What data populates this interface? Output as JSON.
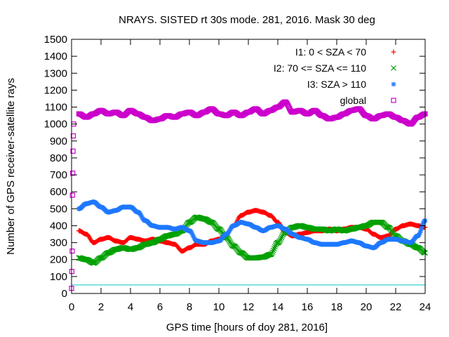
{
  "chart_data": {
    "type": "scatter",
    "title": "NRAYS. SISTED rt 30s mode. 281, 2016. Mask 30 deg",
    "xlabel": "GPS time [hours of doy 281, 2016]",
    "ylabel": "Number of GPS receiver-satellite rays",
    "xlim": [
      0,
      24
    ],
    "ylim": [
      0,
      1500
    ],
    "x_ticks": [
      "0",
      "2",
      "4",
      "6",
      "8",
      "10",
      "12",
      "14",
      "16",
      "18",
      "20",
      "22",
      "24"
    ],
    "y_ticks": [
      "0",
      "100",
      "200",
      "300",
      "400",
      "500",
      "600",
      "700",
      "800",
      "900",
      "1000",
      "1100",
      "1200",
      "1300",
      "1400",
      "1500"
    ],
    "legend_position": "top-right",
    "reference_line": {
      "y": 50,
      "color": "#00c8c8"
    },
    "series": [
      {
        "name": "I1: 0 < SZA < 70",
        "color": "#ff0000",
        "marker": "+",
        "x": [
          0.5,
          1,
          1.5,
          2,
          2.5,
          3,
          3.5,
          4,
          4.5,
          5,
          5.5,
          6,
          6.5,
          7,
          7.5,
          8,
          8.5,
          9,
          9.5,
          10,
          10.5,
          11,
          11.5,
          12,
          12.5,
          13,
          13.5,
          14,
          14.5,
          15,
          15.5,
          16,
          16.5,
          17,
          17.5,
          18,
          18.5,
          19,
          19.5,
          20,
          20.5,
          21,
          21.5,
          22,
          22.5,
          23,
          23.5,
          24
        ],
        "y": [
          370,
          350,
          300,
          320,
          330,
          310,
          300,
          330,
          320,
          310,
          320,
          310,
          300,
          290,
          250,
          270,
          290,
          290,
          310,
          320,
          350,
          400,
          460,
          480,
          490,
          480,
          460,
          420,
          360,
          340,
          350,
          360,
          370,
          370,
          380,
          370,
          380,
          390,
          390,
          380,
          350,
          330,
          340,
          380,
          400,
          410,
          400,
          390
        ]
      },
      {
        "name": "I2: 70 <= SZA <= 110",
        "color": "#00a000",
        "marker": "x",
        "x": [
          0.5,
          1,
          1.5,
          2,
          2.5,
          3,
          3.5,
          4,
          4.5,
          5,
          5.5,
          6,
          6.5,
          7,
          7.5,
          8,
          8.5,
          9,
          9.5,
          10,
          10.5,
          11,
          11.5,
          12,
          12.5,
          13,
          13.5,
          14,
          14.5,
          15,
          15.5,
          16,
          16.5,
          17,
          17.5,
          18,
          18.5,
          19,
          19.5,
          20,
          20.5,
          21,
          21.5,
          22,
          22.5,
          23,
          23.5,
          24
        ],
        "y": [
          210,
          200,
          180,
          210,
          240,
          260,
          270,
          260,
          270,
          290,
          300,
          320,
          340,
          350,
          370,
          420,
          450,
          440,
          420,
          380,
          330,
          280,
          240,
          210,
          210,
          215,
          230,
          300,
          360,
          390,
          400,
          390,
          380,
          380,
          370,
          380,
          370,
          380,
          390,
          400,
          420,
          420,
          390,
          340,
          310,
          290,
          270,
          240
        ]
      },
      {
        "name": "I3: SZA > 110",
        "color": "#1e78ff",
        "marker": "*",
        "x": [
          0.5,
          1,
          1.5,
          2,
          2.5,
          3,
          3.5,
          4,
          4.5,
          5,
          5.5,
          6,
          6.5,
          7,
          7.5,
          8,
          8.5,
          9,
          9.5,
          10,
          10.5,
          11,
          11.5,
          12,
          12.5,
          13,
          13.5,
          14,
          14.5,
          15,
          15.5,
          16,
          16.5,
          17,
          17.5,
          18,
          18.5,
          19,
          19.5,
          20,
          20.5,
          21,
          21.5,
          22,
          22.5,
          23,
          23.5,
          24
        ],
        "y": [
          500,
          530,
          540,
          510,
          480,
          490,
          510,
          510,
          480,
          430,
          400,
          390,
          390,
          380,
          390,
          370,
          310,
          300,
          300,
          310,
          350,
          400,
          420,
          410,
          390,
          370,
          390,
          400,
          380,
          350,
          330,
          320,
          300,
          290,
          290,
          290,
          300,
          310,
          300,
          280,
          270,
          300,
          320,
          320,
          310,
          300,
          340,
          430
        ]
      },
      {
        "name": "global",
        "color": "#cc00cc",
        "marker": "square",
        "x": [
          0.5,
          1,
          1.5,
          2,
          2.5,
          3,
          3.5,
          4,
          4.5,
          5,
          5.5,
          6,
          6.5,
          7,
          7.5,
          8,
          8.5,
          9,
          9.5,
          10,
          10.5,
          11,
          11.5,
          12,
          12.5,
          13,
          13.5,
          14,
          14.5,
          15,
          15.5,
          16,
          16.5,
          17,
          17.5,
          18,
          18.5,
          19,
          19.5,
          20,
          20.5,
          21,
          21.5,
          22,
          22.5,
          23,
          23.5,
          24
        ],
        "y": [
          1060,
          1040,
          1060,
          1080,
          1060,
          1070,
          1050,
          1080,
          1060,
          1040,
          1020,
          1030,
          1050,
          1040,
          1060,
          1070,
          1050,
          1070,
          1090,
          1060,
          1050,
          1070,
          1050,
          1070,
          1090,
          1060,
          1080,
          1100,
          1130,
          1070,
          1080,
          1060,
          1080,
          1050,
          1030,
          1040,
          1060,
          1080,
          1090,
          1050,
          1030,
          1050,
          1060,
          1040,
          1020,
          1000,
          1040,
          1060
        ]
      }
    ],
    "initial_ramp": [
      {
        "x": 0,
        "y": 30
      },
      {
        "x": 0.02,
        "y": 130
      },
      {
        "x": 0.04,
        "y": 250
      },
      {
        "x": 0.06,
        "y": 580
      },
      {
        "x": 0.08,
        "y": 710
      },
      {
        "x": 0.1,
        "y": 840
      },
      {
        "x": 0.12,
        "y": 930
      },
      {
        "x": 0.14,
        "y": 1000
      }
    ]
  }
}
